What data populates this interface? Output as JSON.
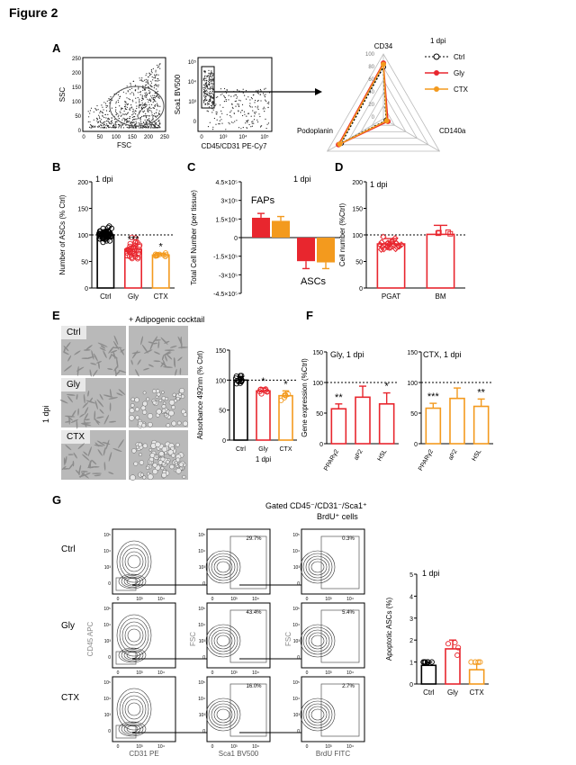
{
  "figure_title": "Figure 2",
  "panels": {
    "A": "A",
    "B": "B",
    "C": "C",
    "D": "D",
    "E": "E",
    "F": "F",
    "G": "G"
  },
  "panelA": {
    "flow1": {
      "xlabel": "FSC",
      "ylabel": "SSC",
      "yticks": [
        "250",
        "200",
        "150",
        "100",
        "50",
        "0"
      ],
      "xticks": [
        "0",
        "50",
        "100",
        "150",
        "200",
        "250"
      ]
    },
    "flow2": {
      "xlabel": "CD45/CD31 PE-Cy7",
      "ylabel": "Sca1 BV500",
      "yticks": [
        "10⁵",
        "10⁴",
        "10³",
        "0"
      ],
      "xticks": [
        "0",
        "10³",
        "10⁴",
        "10⁵"
      ]
    },
    "radar": {
      "axes": [
        "CD34",
        "CD140a",
        "Podoplanin"
      ],
      "rings": [
        "100",
        "80",
        "60",
        "40",
        "20",
        "0"
      ],
      "legend_title": "1 dpi",
      "legend": [
        "Ctrl",
        "Gly",
        "CTX"
      ]
    }
  },
  "chart_data": [
    {
      "panel": "B",
      "type": "bar",
      "title": "1 dpi",
      "ylabel": "Number of ASCs (% Ctrl)",
      "categories": [
        "Ctrl",
        "Gly",
        "CTX"
      ],
      "values": [
        100,
        73,
        62
      ],
      "errors": [
        4,
        6,
        3
      ],
      "significance": [
        "",
        "***",
        "*"
      ],
      "yticks": [
        "200",
        "150",
        "100",
        "50",
        "0"
      ],
      "ylim": [
        0,
        200
      ],
      "colors": [
        "#000000",
        "#e8262e",
        "#f39a1e"
      ]
    },
    {
      "panel": "C",
      "type": "bar",
      "title": "1 dpi",
      "ylabel": "Total Cell Number (per tissue)",
      "groups": [
        "FAPs",
        "ASCs"
      ],
      "series": [
        {
          "name": "Gly",
          "values": [
            160000,
            -190000
          ]
        },
        {
          "name": "CTX",
          "values": [
            135000,
            -200000
          ]
        }
      ],
      "errors": [
        [
          35000,
          60000
        ],
        [
          35000,
          50000
        ]
      ],
      "yticks": [
        "4.5×10⁵",
        "3×10⁵",
        "1.5×10⁵",
        "0",
        "-1.5×10⁵",
        "-3×10⁵",
        "-4.5×10⁵"
      ],
      "ylim": [
        -450000,
        450000
      ],
      "colors": [
        "#e8262e",
        "#f39a1e"
      ]
    },
    {
      "panel": "D",
      "type": "bar",
      "title": "1 dpi",
      "ylabel": "Cell number (%Ctrl)",
      "categories": [
        "PGAT",
        "BM"
      ],
      "values": [
        83,
        101
      ],
      "errors": [
        10,
        17
      ],
      "yticks": [
        "200",
        "150",
        "100",
        "50",
        "0"
      ],
      "ylim": [
        0,
        200
      ],
      "colors": [
        "#e8262e",
        "#e8262e"
      ]
    },
    {
      "panel": "E",
      "type": "bar",
      "title": "",
      "ylabel": "Absorbance 492nm (% Ctrl)",
      "xlabel": "1 dpi",
      "categories": [
        "Ctrl",
        "Gly",
        "CTX"
      ],
      "values": [
        100,
        82,
        74
      ],
      "errors": [
        6,
        5,
        8
      ],
      "significance": [
        "",
        "*",
        "*"
      ],
      "yticks": [
        "150",
        "100",
        "50",
        "0"
      ],
      "ylim": [
        0,
        150
      ],
      "colors": [
        "#000000",
        "#e8262e",
        "#f39a1e"
      ]
    },
    {
      "panel": "F",
      "type": "bar",
      "title": "Gly, 1 dpi",
      "ylabel": "Gene expression (%Ctrl)",
      "categories": [
        "PPARγ2",
        "aP2",
        "HSL"
      ],
      "values": [
        57,
        76,
        65
      ],
      "errors": [
        8,
        18,
        18
      ],
      "significance": [
        "**",
        "",
        "*"
      ],
      "yticks": [
        "150",
        "100",
        "50",
        "0"
      ],
      "ylim": [
        0,
        150
      ],
      "colors": [
        "#e8262e"
      ]
    },
    {
      "panel": "F",
      "type": "bar",
      "title": "CTX, 1 dpi",
      "ylabel": "",
      "categories": [
        "PPARγ2",
        "aP2",
        "HSL"
      ],
      "values": [
        58,
        74,
        61
      ],
      "errors": [
        8,
        17,
        12
      ],
      "significance": [
        "***",
        "",
        "**"
      ],
      "yticks": [
        "150",
        "100",
        "50",
        "0"
      ],
      "ylim": [
        0,
        150
      ],
      "colors": [
        "#f39a1e"
      ]
    },
    {
      "panel": "G",
      "type": "bar",
      "title": "1 dpi",
      "ylabel": "Apoptotic ASCs (%)",
      "categories": [
        "Ctrl",
        "Gly",
        "CTX"
      ],
      "values": [
        0.85,
        1.6,
        0.65
      ],
      "errors": [
        0.15,
        0.4,
        0.25
      ],
      "yticks": [
        "5",
        "4",
        "3",
        "2",
        "1",
        "0"
      ],
      "ylim": [
        0,
        5
      ],
      "colors": [
        "#000000",
        "#e8262e",
        "#f39a1e"
      ]
    }
  ],
  "panelE": {
    "cocktail_label": "+ Adipogenic cocktail",
    "rows": [
      "Ctrl",
      "Gly",
      "CTX"
    ],
    "side_label": "1 dpi"
  },
  "panelG": {
    "header_line1": "Gated CD45⁻/CD31⁻/Sca1⁺",
    "header_line2": "BrdU⁺ cells",
    "rows": [
      "Ctrl",
      "Gly",
      "CTX"
    ],
    "col_xlabels": [
      "CD31 PE",
      "Sca1 BV500",
      "BrdU FITC"
    ],
    "col_ylabels": [
      "CD45 APC",
      "FSC",
      "FSC"
    ],
    "gate_pct": [
      [
        "",
        "29.7%",
        "0.3%"
      ],
      [
        "",
        "43.4%",
        "5.4%"
      ],
      [
        "",
        "16.0%",
        "2.7%"
      ]
    ]
  }
}
